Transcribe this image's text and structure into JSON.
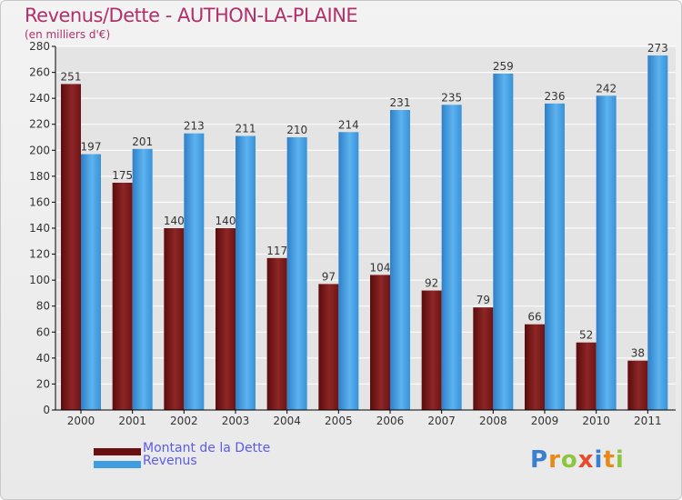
{
  "title": "Revenus/Dette - AUTHON-LA-PLAINE",
  "subtitle": "(en milliers d'€)",
  "logo": {
    "text": "Proxiti",
    "letter_colors": [
      "#3a7fd0",
      "#e88a1a",
      "#8cc63f",
      "#e84a2a",
      "#3a7fd0",
      "#e88a1a",
      "#8cc63f"
    ]
  },
  "colors": {
    "debt": "#7a1616",
    "revenue": "#3f9de0",
    "axis": "#000000",
    "grid": "#ffffff",
    "value_label": "#333333"
  },
  "chart_data": {
    "type": "bar",
    "categories": [
      "2000",
      "2001",
      "2002",
      "2003",
      "2004",
      "2005",
      "2006",
      "2007",
      "2008",
      "2009",
      "2010",
      "2011"
    ],
    "series": [
      {
        "name": "Montant de la Dette",
        "values": [
          251,
          175,
          140,
          140,
          117,
          97,
          104,
          92,
          79,
          66,
          52,
          38
        ]
      },
      {
        "name": "Revenus",
        "values": [
          197,
          201,
          213,
          211,
          210,
          214,
          231,
          235,
          259,
          236,
          242,
          273
        ]
      }
    ],
    "yticks": [
      0,
      20,
      40,
      60,
      80,
      100,
      120,
      140,
      160,
      180,
      200,
      220,
      240,
      260,
      280
    ],
    "ylim": [
      0,
      280
    ],
    "grid": true,
    "legend_position": "bottom-left",
    "data_labels": true
  }
}
